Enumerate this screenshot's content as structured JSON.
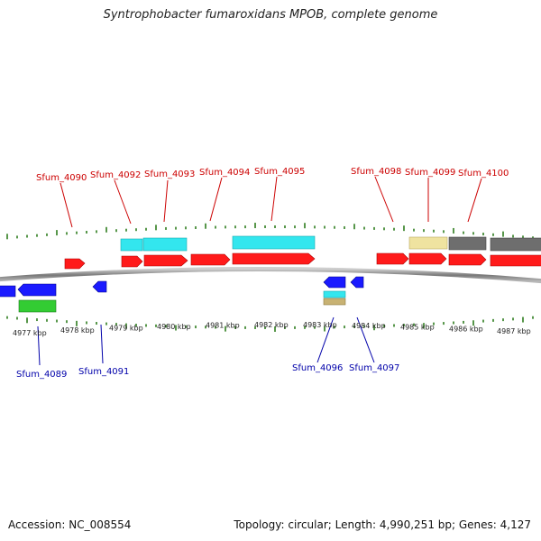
{
  "title": "Syntrophobacter fumaroxidans MPOB, complete genome",
  "footer": {
    "accession": "Accession: NC_008554",
    "topology": "Topology: circular; Length: 4,990,251 bp; Genes: 4,127"
  },
  "colors": {
    "forward_label": "#cc0000",
    "reverse_label": "#0000aa",
    "tick": "#2e7d1e",
    "backbone": "#8a8a8a",
    "cds_forward": "#ff1a1a",
    "cds_reverse": "#1a1aff",
    "cyan": "#33e6ee",
    "khaki": "#efe3a0",
    "gray": "#6e6e6e",
    "green": "#33cc33",
    "tan": "#c8b273"
  },
  "axis": {
    "labels": [
      "4977 kbp",
      "4978 kbp",
      "4979 kbp",
      "4980 kbp",
      "4981 kbp",
      "4982 kbp",
      "4983 kbp",
      "4984 kbp",
      "4985 kbp",
      "4986 kbp",
      "4987 kbp"
    ]
  },
  "gene_labels": {
    "forward": [
      "Sfum_4090",
      "Sfum_4092",
      "Sfum_4093",
      "Sfum_4094",
      "Sfum_4095",
      "Sfum_4098",
      "Sfum_4099",
      "Sfum_4100"
    ],
    "reverse": [
      "Sfum_4089",
      "Sfum_4091",
      "Sfum_4096",
      "Sfum_4097"
    ]
  }
}
